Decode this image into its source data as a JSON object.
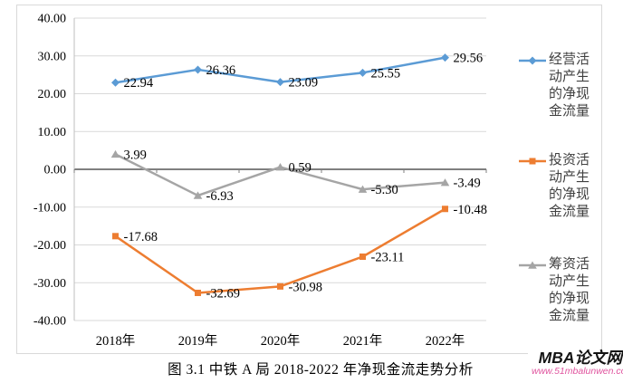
{
  "figure": {
    "caption": "图 3.1 中铁 A 局 2018-2022 年净现金流走势分析",
    "watermark": {
      "brand": "MBA论文网",
      "url": "www.51mbalunwen.com"
    }
  },
  "chart_data": {
    "type": "line",
    "title": "",
    "xlabel": "",
    "ylabel": "",
    "categories": [
      "2018年",
      "2019年",
      "2020年",
      "2021年",
      "2022年"
    ],
    "series": [
      {
        "name": "经营活动产生的净现金流量",
        "color": "#5B9BD5",
        "marker": "diamond",
        "values": [
          22.94,
          26.36,
          23.09,
          25.55,
          29.56
        ]
      },
      {
        "name": "投资活动产生的净现金流量",
        "color": "#ED7D31",
        "marker": "square",
        "values": [
          -17.68,
          -32.69,
          -30.98,
          -23.11,
          -10.48
        ]
      },
      {
        "name": "筹资活动产生的净现金流量",
        "color": "#A5A5A5",
        "marker": "triangle",
        "values": [
          3.99,
          -6.93,
          0.59,
          -5.3,
          -3.49
        ]
      }
    ],
    "ylim": [
      -40,
      40
    ],
    "ytick_step": 10,
    "ytick_labels": [
      "40.00",
      "30.00",
      "20.00",
      "10.00",
      "0.00",
      "-10.00",
      "-20.00",
      "-30.00",
      "-40.00"
    ],
    "data_labels": true,
    "grid": true,
    "legend_position": "right",
    "colors": {
      "gridline": "#d9d9d9",
      "zero_axis": "#7f7f7f",
      "axis_line": "#bfbfbf",
      "label_text": "#000000",
      "legend_text": "#404040"
    }
  }
}
